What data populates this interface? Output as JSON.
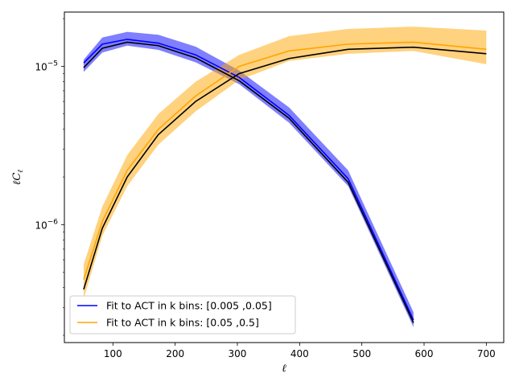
{
  "chart_data": {
    "type": "line",
    "xlabel": "ℓ",
    "ylabel": "ℓC",
    "ylabel_sub": "ℓ",
    "xlim": [
      22,
      728
    ],
    "ylim": [
      1.8e-07,
      2.2e-05
    ],
    "yscale": "log",
    "x_ticks": [
      100,
      200,
      300,
      400,
      500,
      600,
      700
    ],
    "y_major_ticks": [
      {
        "value": 1e-06,
        "base": "10",
        "exp": "−6"
      },
      {
        "value": 1e-05,
        "base": "10",
        "exp": "−5"
      }
    ],
    "legend_position": "lower-left",
    "series": [
      {
        "name": "Fit to ACT in k bins: [0.005 ,0.05]",
        "color": "#0000ff",
        "band_color": "#0000ff",
        "x": [
          53,
          83,
          123,
          173,
          233,
          303,
          383,
          478,
          583
        ],
        "mean": [
          1.05e-05,
          1.38e-05,
          1.48e-05,
          1.4e-05,
          1.18e-05,
          8.5e-06,
          4.9e-06,
          1.95e-06,
          2.5e-07
        ],
        "lower": [
          9.2e-06,
          1.22e-05,
          1.35e-05,
          1.27e-05,
          1.06e-05,
          7.7e-06,
          4.4e-06,
          1.75e-06,
          2.25e-07
        ],
        "upper": [
          1.1e-05,
          1.52e-05,
          1.65e-05,
          1.58e-05,
          1.33e-05,
          9.4e-06,
          5.5e-06,
          2.2e-06,
          2.8e-07
        ],
        "fit": [
          9.8e-06,
          1.3e-05,
          1.42e-05,
          1.35e-05,
          1.13e-05,
          8.1e-06,
          4.7e-06,
          1.85e-06,
          2.4e-07
        ]
      },
      {
        "name": "Fit to ACT in k bins: [0.05 ,0.5]",
        "color": "#ffa500",
        "band_color": "#ffa500",
        "x": [
          53,
          83,
          123,
          173,
          233,
          303,
          383,
          478,
          583,
          700
        ],
        "mean": [
          4.5e-07,
          1.05e-06,
          2.2e-06,
          4e-06,
          6.5e-06,
          1e-05,
          1.25e-05,
          1.38e-05,
          1.42e-05,
          1.28e-05
        ],
        "lower": [
          3.4e-07,
          8.5e-07,
          1.75e-06,
          3.2e-06,
          5.2e-06,
          8.2e-06,
          1.08e-05,
          1.2e-05,
          1.25e-05,
          1.03e-05
        ],
        "upper": [
          5.6e-07,
          1.3e-06,
          2.75e-06,
          5e-06,
          8e-06,
          1.18e-05,
          1.55e-05,
          1.72e-05,
          1.78e-05,
          1.68e-05
        ],
        "fit": [
          3.9e-07,
          9.5e-07,
          2e-06,
          3.7e-06,
          6e-06,
          9e-06,
          1.12e-05,
          1.28e-05,
          1.32e-05,
          1.2e-05
        ]
      }
    ]
  }
}
